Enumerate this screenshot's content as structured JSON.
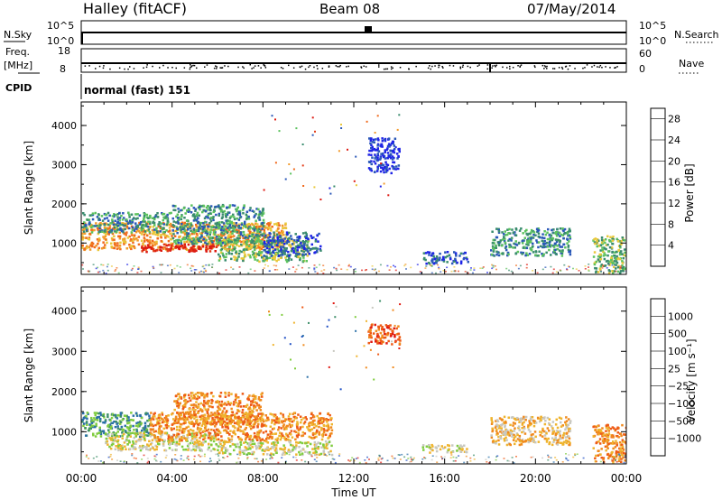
{
  "header": {
    "station": "Halley (fitACF)",
    "beam": "Beam 08",
    "date": "07/May/2014"
  },
  "status_panels": {
    "nsky_label": "N.Sky",
    "nsky_ticks": [
      "10^5",
      "10^0"
    ],
    "nsearch_label": "N.Search",
    "nsearch_ticks": [
      "10^5",
      "10^0"
    ],
    "freq_label_1": "Freq.",
    "freq_label_2": "[MHz]",
    "freq_ticks": [
      "18",
      "8"
    ],
    "nave_label": "Nave",
    "nave_ticks": [
      "60",
      "0"
    ],
    "cpid_label": "CPID",
    "cpid_value": "normal (fast) 151"
  },
  "colors": {
    "power": [
      "#1f24e6",
      "#2a58b8",
      "#3a8c6e",
      "#5cc25e",
      "#e9c83a",
      "#f29a2a",
      "#f06a1c",
      "#e23a16",
      "#dd1a12"
    ],
    "velocity": [
      "#1f4fc4",
      "#2a6fa8",
      "#3e8f6a",
      "#7fcc3e",
      "#c8c8c0",
      "#efb42e",
      "#f08a1e",
      "#ee5a16",
      "#e01a12"
    ]
  },
  "chart_data": [
    {
      "type": "heatmap",
      "title": "",
      "xlabel": "Time UT",
      "ylabel": "Slant Range [km]",
      "xlim": [
        0,
        24
      ],
      "ylim": [
        200,
        4600
      ],
      "x_ticks": [
        "00:00",
        "04:00",
        "08:00",
        "12:00",
        "16:00",
        "20:00",
        "00:00"
      ],
      "y_ticks": [
        "1000",
        "2000",
        "3000",
        "4000"
      ],
      "colorbar_label": "Power [dB]",
      "colorbar_ticks": [
        "4",
        "8",
        "12",
        "16",
        "20",
        "24",
        "28"
      ],
      "colorbar_range": [
        0,
        30
      ],
      "regions": [
        {
          "t": [
            0,
            9
          ],
          "r": [
            850,
            1550
          ],
          "level": 5
        },
        {
          "t": [
            2.5,
            6
          ],
          "r": [
            800,
            1000
          ],
          "level": 8
        },
        {
          "t": [
            6,
            10
          ],
          "r": [
            550,
            1100
          ],
          "level": 3
        },
        {
          "t": [
            0,
            4
          ],
          "r": [
            1300,
            1800
          ],
          "level": 2
        },
        {
          "t": [
            4,
            8
          ],
          "r": [
            1000,
            2000
          ],
          "level": 2
        },
        {
          "t": [
            8,
            10.5
          ],
          "r": [
            700,
            1300
          ],
          "level": 1
        },
        {
          "t": [
            12.6,
            14
          ],
          "r": [
            2800,
            3700
          ],
          "level": 0
        },
        {
          "t": [
            15,
            17
          ],
          "r": [
            500,
            800
          ],
          "level": 1
        },
        {
          "t": [
            18,
            21.5
          ],
          "r": [
            700,
            1400
          ],
          "level": 2
        },
        {
          "t": [
            22.5,
            24
          ],
          "r": [
            250,
            1200
          ],
          "level": 3
        }
      ]
    },
    {
      "type": "heatmap",
      "title": "",
      "xlabel": "Time UT",
      "ylabel": "Slant Range [km]",
      "xlim": [
        0,
        24
      ],
      "ylim": [
        200,
        4600
      ],
      "x_ticks": [
        "00:00",
        "04:00",
        "08:00",
        "12:00",
        "16:00",
        "20:00",
        "00:00"
      ],
      "y_ticks": [
        "1000",
        "2000",
        "3000",
        "4000"
      ],
      "colorbar_label": "Velocity [m s⁻¹]",
      "colorbar_ticks": [
        "1000",
        "500",
        "100",
        "25",
        "−25",
        "−100",
        "−500",
        "−1000"
      ],
      "colorbar_range": [
        -1200,
        1200
      ],
      "regions": [
        {
          "t": [
            0,
            3
          ],
          "r": [
            900,
            1500
          ],
          "level": 2
        },
        {
          "t": [
            1,
            6
          ],
          "r": [
            550,
            1000
          ],
          "level": 4
        },
        {
          "t": [
            3,
            11
          ],
          "r": [
            800,
            1500
          ],
          "level": 6
        },
        {
          "t": [
            4,
            8
          ],
          "r": [
            1200,
            2000
          ],
          "level": 6
        },
        {
          "t": [
            6,
            11
          ],
          "r": [
            450,
            800
          ],
          "level": 4
        },
        {
          "t": [
            12.6,
            14
          ],
          "r": [
            3200,
            3700
          ],
          "level": 7
        },
        {
          "t": [
            15,
            17
          ],
          "r": [
            500,
            700
          ],
          "level": 4
        },
        {
          "t": [
            18,
            21.5
          ],
          "r": [
            700,
            1400
          ],
          "level": 5
        },
        {
          "t": [
            22.5,
            24
          ],
          "r": [
            250,
            1200
          ],
          "level": 6
        }
      ]
    }
  ]
}
